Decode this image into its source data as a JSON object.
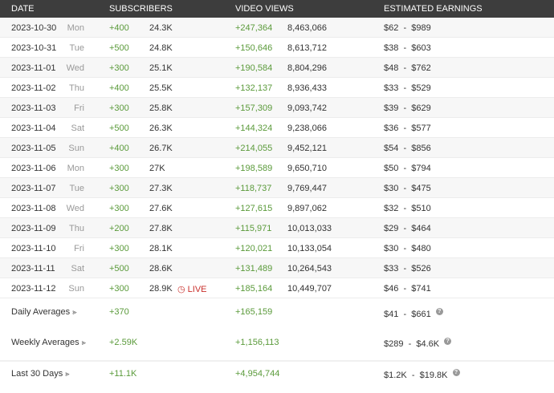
{
  "headers": {
    "date": "DATE",
    "subscribers": "SUBSCRIBERS",
    "views": "VIDEO VIEWS",
    "earnings": "ESTIMATED EARNINGS"
  },
  "rows": [
    [
      "2023-10-30",
      "Mon",
      "+400",
      "24.3K",
      "+247,364",
      "8,463,066",
      "$62  -  $989"
    ],
    [
      "2023-10-31",
      "Tue",
      "+500",
      "24.8K",
      "+150,646",
      "8,613,712",
      "$38  -  $603"
    ],
    [
      "2023-11-01",
      "Wed",
      "+300",
      "25.1K",
      "+190,584",
      "8,804,296",
      "$48  -  $762"
    ],
    [
      "2023-11-02",
      "Thu",
      "+400",
      "25.5K",
      "+132,137",
      "8,936,433",
      "$33  -  $529"
    ],
    [
      "2023-11-03",
      "Fri",
      "+300",
      "25.8K",
      "+157,309",
      "9,093,742",
      "$39  -  $629"
    ],
    [
      "2023-11-04",
      "Sat",
      "+500",
      "26.3K",
      "+144,324",
      "9,238,066",
      "$36  -  $577"
    ],
    [
      "2023-11-05",
      "Sun",
      "+400",
      "26.7K",
      "+214,055",
      "9,452,121",
      "$54  -  $856"
    ],
    [
      "2023-11-06",
      "Mon",
      "+300",
      "27K",
      "+198,589",
      "9,650,710",
      "$50  -  $794"
    ],
    [
      "2023-11-07",
      "Tue",
      "+300",
      "27.3K",
      "+118,737",
      "9,769,447",
      "$30  -  $475"
    ],
    [
      "2023-11-08",
      "Wed",
      "+300",
      "27.6K",
      "+127,615",
      "9,897,062",
      "$32  -  $510"
    ],
    [
      "2023-11-09",
      "Thu",
      "+200",
      "27.8K",
      "+115,971",
      "10,013,033",
      "$29  -  $464"
    ],
    [
      "2023-11-10",
      "Fri",
      "+300",
      "28.1K",
      "+120,021",
      "10,133,054",
      "$30  -  $480"
    ],
    [
      "2023-11-11",
      "Sat",
      "+500",
      "28.6K",
      "+131,489",
      "10,264,543",
      "$33  -  $526"
    ],
    [
      "2023-11-12",
      "Sun",
      "+300",
      "28.9K",
      "+185,164",
      "10,449,707",
      "$46  -  $741"
    ]
  ],
  "live_label": "LIVE",
  "live_row_date": "2023-11-12",
  "summary": [
    {
      "label": "Daily Averages",
      "subs": "+370",
      "views": "+165,159",
      "earnings": "$41  -  $661"
    },
    {
      "label": "Weekly Averages",
      "subs": "+2.59K",
      "views": "+1,156,113",
      "earnings": "$289  -  $4.6K"
    },
    {
      "label": "Last 30 Days",
      "subs": "+11.1K",
      "views": "+4,954,744",
      "earnings": "$1.2K  -  $19.8K"
    }
  ],
  "colors": {
    "header_bg": "#3d3d3d",
    "positive": "#5a9a3a",
    "live": "#c9302c"
  }
}
